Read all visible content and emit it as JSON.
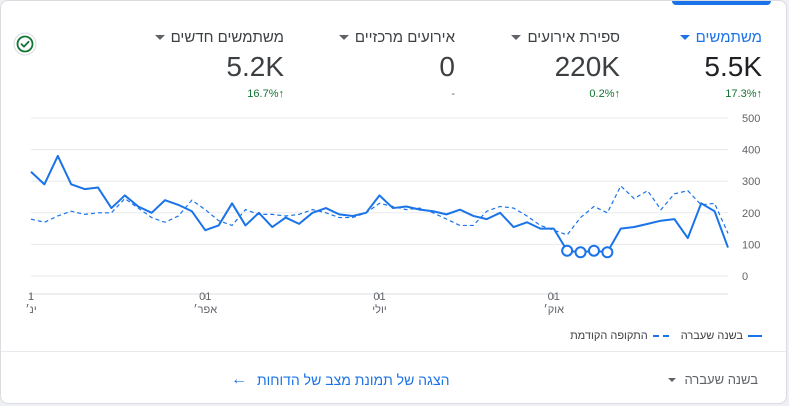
{
  "metrics": [
    {
      "label": "משתמשים",
      "value": "5.5K",
      "change": "17.3%",
      "arrow": "↑",
      "selected": true,
      "trend": "up"
    },
    {
      "label": "ספירת אירועים",
      "value": "220K",
      "change": "0.2%",
      "arrow": "↑",
      "selected": false,
      "trend": "up"
    },
    {
      "label": "אירועים מרכזיים",
      "value": "0",
      "change": "-",
      "arrow": "",
      "selected": false,
      "trend": "neutral"
    },
    {
      "label": "משתמשים חדשים",
      "value": "5.2K",
      "change": "16.7%",
      "arrow": "↑",
      "selected": false,
      "trend": "up"
    }
  ],
  "legend": {
    "current": "בשנה שעברה",
    "previous": "התקופה הקודמת"
  },
  "footer": {
    "link_text": "הצגה של תמונת מצב של הדוחות",
    "arrow": "←",
    "period_label": "בשנה שעברה"
  },
  "colors": {
    "accent": "#1a73e8",
    "positive": "#137333",
    "neutral": "#5f6368",
    "grid": "#e8eaed"
  },
  "icons": {
    "status": "check-circle-icon",
    "link": "arrow-left-icon",
    "dropdown": "caret-down-icon"
  },
  "chart_data": {
    "type": "line",
    "ylim": [
      0,
      500
    ],
    "yticks": [
      0,
      100,
      200,
      300,
      400,
      500
    ],
    "xticks": [
      {
        "index": 0,
        "day": "1",
        "month": "ינ׳"
      },
      {
        "index": 13,
        "day": "01",
        "month": "אפר׳"
      },
      {
        "index": 26,
        "day": "01",
        "month": "יולי"
      },
      {
        "index": 39,
        "day": "01",
        "month": "אוק׳"
      }
    ],
    "series": [
      {
        "name": "בשנה שעברה",
        "style": "solid",
        "color": "#1a73e8",
        "values": [
          330,
          290,
          380,
          290,
          275,
          280,
          215,
          255,
          220,
          200,
          240,
          225,
          205,
          145,
          160,
          230,
          160,
          200,
          155,
          185,
          165,
          200,
          215,
          195,
          190,
          200,
          255,
          215,
          220,
          210,
          205,
          195,
          210,
          190,
          180,
          200,
          155,
          170,
          150,
          150,
          80,
          75,
          80,
          75,
          150,
          155,
          165,
          175,
          180,
          120,
          230,
          205,
          90
        ],
        "hollow_markers": [
          40,
          41,
          42,
          43
        ]
      },
      {
        "name": "התקופה הקודמת",
        "style": "dashed",
        "color": "#1a73e8",
        "values": [
          180,
          170,
          190,
          205,
          195,
          200,
          200,
          245,
          215,
          185,
          170,
          190,
          240,
          210,
          175,
          160,
          210,
          195,
          195,
          190,
          195,
          210,
          200,
          185,
          185,
          200,
          230,
          220,
          210,
          215,
          200,
          180,
          160,
          160,
          205,
          220,
          215,
          190,
          160,
          145,
          130,
          185,
          220,
          200,
          285,
          245,
          270,
          210,
          260,
          270,
          225,
          230,
          135
        ]
      }
    ]
  }
}
